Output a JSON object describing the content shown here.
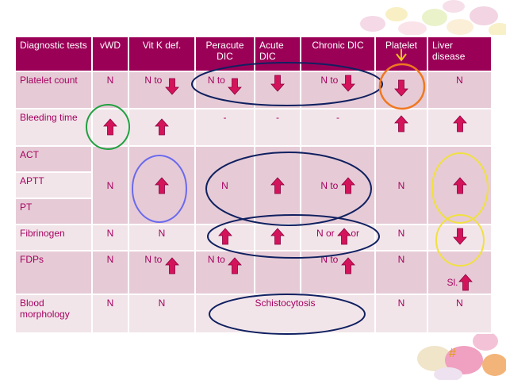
{
  "table": {
    "headers": [
      "Diagnostic tests",
      "vWD",
      "Vit K def.",
      "Peracute DIC",
      "Acute DIC",
      "Chronic DIC",
      "Platelet",
      "Liver disease"
    ],
    "rows": {
      "platelet": {
        "label": "Platelet count",
        "vwd": "N",
        "vitk": "N to",
        "peracute": "N to",
        "chronic": "N to",
        "liver": "N"
      },
      "bleeding": {
        "label": "Bleeding time",
        "peracute": "-",
        "acute": "-",
        "chronic": "-"
      },
      "act": {
        "label": "ACT"
      },
      "aptt": {
        "label": "APTT",
        "vwd": "N",
        "peracute": "N",
        "chronic": "N to",
        "platelet": "N"
      },
      "pt": {
        "label": "PT"
      },
      "fibrinogen": {
        "label": "Fibrinogen",
        "vwd": "N",
        "vitk": "N",
        "chronic_a": "N or",
        "chronic_b": "or",
        "platelet": "N"
      },
      "fdps": {
        "label": "FDPs",
        "vwd": "N",
        "vitk": "N to",
        "peracute": "N to",
        "chronic": "N to",
        "platelet": "N",
        "liver": "Sl."
      },
      "morphology": {
        "label": "Blood morphology",
        "vwd": "N",
        "vitk": "N",
        "dic": "Schistocytosis",
        "platelet": "N",
        "liver": "N"
      }
    }
  },
  "icons": {
    "up": "up-arrow-icon",
    "down": "down-arrow-icon"
  },
  "colors": {
    "header_bg": "#9b0057",
    "row_odd": "#e6cbd6",
    "row_even": "#f2e5ea",
    "text": "#a5005f",
    "arrow": "#d4145a",
    "circle_green": "#20a040",
    "circle_blue": "#6a6aee",
    "circle_navy": "#102060",
    "circle_orange": "#f07820",
    "circle_yellow": "#f0e040"
  },
  "footer": {
    "slide_number": "#"
  }
}
